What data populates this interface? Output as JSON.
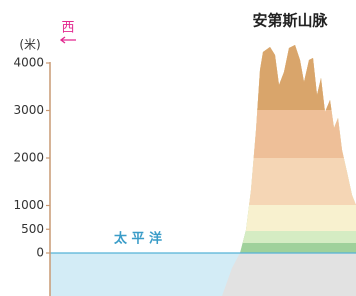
{
  "title": "安第斯山脉",
  "direction": "西",
  "axis": {
    "unit": "(米)",
    "ticks": [
      0,
      500,
      1000,
      2000,
      3000,
      4000
    ]
  },
  "sea_label": "太 平 洋"
}
